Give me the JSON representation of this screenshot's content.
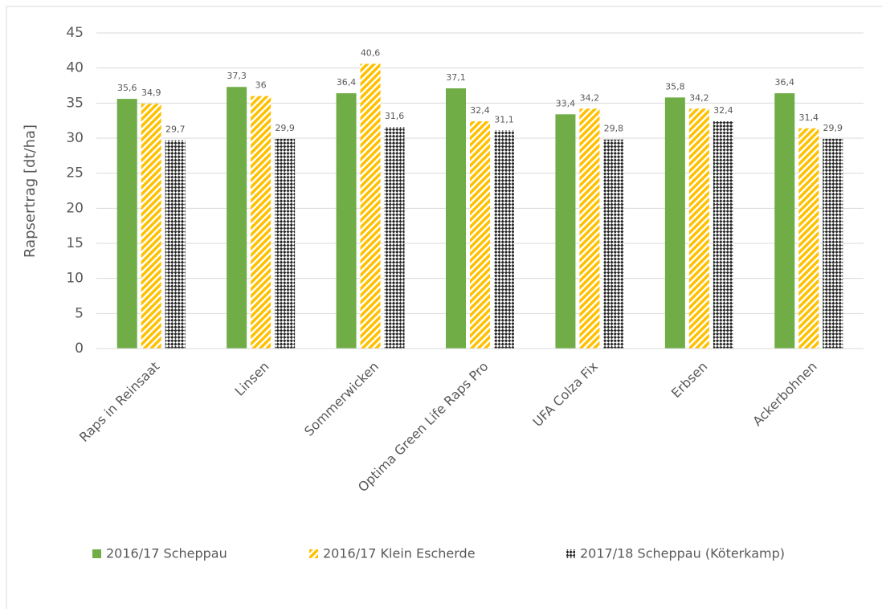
{
  "chart_data": {
    "type": "bar",
    "y_label": "Rapsertrag [dt/ha]",
    "categories": [
      "Raps in Reinsaat",
      "Linsen",
      "Sommerwicken",
      "Optima Green Life Raps Pro",
      "UFA Colza Fix",
      "Erbsen",
      "Ackerbohnen"
    ],
    "series": [
      {
        "name": "2016/17 Scheppau",
        "color": "#70ad47",
        "fill": "solid",
        "values": [
          35.6,
          37.3,
          36.4,
          37.1,
          33.4,
          35.8,
          36.4
        ],
        "value_labels": [
          "35,6",
          "37,3",
          "36,4",
          "37,1",
          "33,4",
          "35,8",
          "36,4"
        ]
      },
      {
        "name": "2016/17 Klein Escherde",
        "color": "#ffc000",
        "fill": "stripes",
        "values": [
          34.9,
          36,
          40.6,
          32.4,
          34.2,
          34.2,
          31.4
        ],
        "value_labels": [
          "34,9",
          "36",
          "40,6",
          "32,4",
          "34,2",
          "34,2",
          "31,4"
        ]
      },
      {
        "name": "2017/18 Scheppau (Köterkamp)",
        "color": "#262626",
        "fill": "checker",
        "values": [
          29.7,
          29.9,
          31.6,
          31.1,
          29.8,
          32.4,
          29.9
        ],
        "value_labels": [
          "29,7",
          "29,9",
          "31,6",
          "31,1",
          "29,8",
          "32,4",
          "29,9"
        ]
      }
    ],
    "ylim": [
      0,
      45
    ],
    "yticks": [
      0,
      5,
      10,
      15,
      20,
      25,
      30,
      35,
      40,
      45
    ],
    "grid": true,
    "legend": "bottom"
  }
}
